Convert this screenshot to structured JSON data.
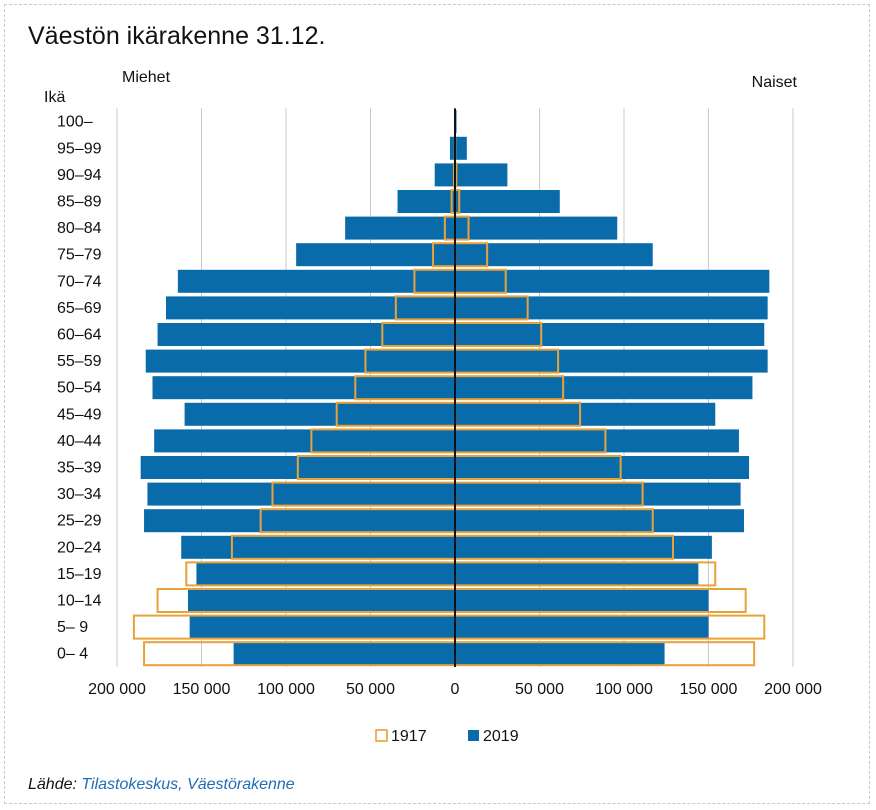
{
  "chart_data": {
    "type": "bar",
    "title": "Väestön ikärakenne 31.12.",
    "left_label": "Miehet",
    "right_label": "Naiset",
    "age_axis_label": "Ikä",
    "categories": [
      "0– 4",
      "5– 9",
      "10–14",
      "15–19",
      "20–24",
      "25–29",
      "30–34",
      "35–39",
      "40–44",
      "45–49",
      "50–54",
      "55–59",
      "60–64",
      "65–69",
      "70–74",
      "75–79",
      "80–84",
      "85–89",
      "90–94",
      "95–99",
      "100–"
    ],
    "series": [
      {
        "name": "2019",
        "color": "#0a6bab",
        "style": "filled",
        "men": [
          131000,
          157000,
          158000,
          153000,
          162000,
          184000,
          182000,
          186000,
          178000,
          160000,
          179000,
          183000,
          176000,
          171000,
          164000,
          94000,
          65000,
          34000,
          12000,
          3000,
          400
        ],
        "women": [
          124000,
          150000,
          150000,
          144000,
          152000,
          171000,
          169000,
          174000,
          168000,
          154000,
          176000,
          185000,
          183000,
          185000,
          186000,
          117000,
          96000,
          62000,
          31000,
          7000,
          900
        ]
      },
      {
        "name": "1917",
        "color": "#e8a23a",
        "style": "outline",
        "men": [
          184000,
          190000,
          176000,
          159000,
          132000,
          115000,
          108000,
          93000,
          85000,
          70000,
          59000,
          53000,
          43000,
          35000,
          24000,
          13000,
          6000,
          2000,
          600,
          100,
          0
        ],
        "women": [
          177000,
          183000,
          172000,
          154000,
          129000,
          117000,
          111000,
          98000,
          89000,
          74000,
          64000,
          61000,
          51000,
          43000,
          30000,
          19000,
          8000,
          2500,
          800,
          150,
          0
        ]
      }
    ],
    "x_ticks": [
      200000,
      150000,
      100000,
      50000,
      0,
      50000,
      100000,
      150000,
      200000
    ],
    "x_tick_labels": [
      "200 000",
      "150 000",
      "100 000",
      "50 000",
      "0",
      "50 000",
      "100 000",
      "150 000",
      "200 000"
    ],
    "xlim": [
      -200000,
      200000
    ],
    "legend": [
      {
        "label": "1917",
        "style": "outline",
        "color": "#e8a23a"
      },
      {
        "label": "2019",
        "style": "filled",
        "color": "#0a6bab"
      }
    ]
  },
  "source": {
    "prefix": "Lähde:",
    "link_text": "Tilastokeskus, Väestörakenne"
  }
}
